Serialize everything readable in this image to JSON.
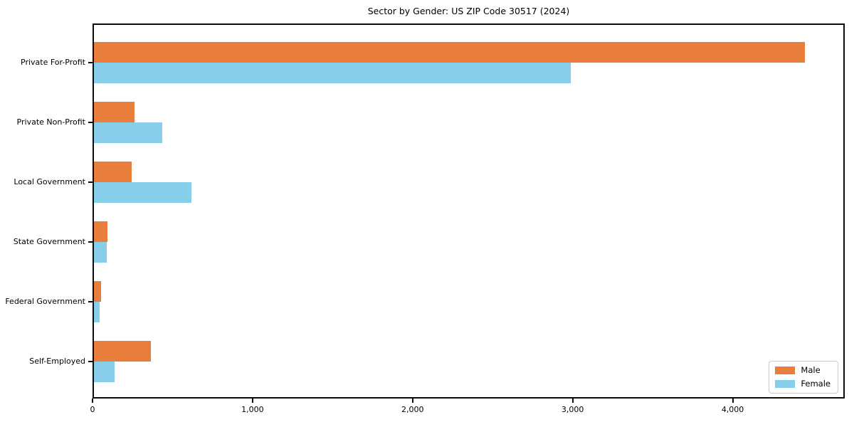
{
  "chart_data": {
    "type": "bar",
    "orientation": "horizontal",
    "title": "Sector by Gender: US ZIP Code 30517 (2024)",
    "categories": [
      "Private For-Profit",
      "Private Non-Profit",
      "Local Government",
      "State Government",
      "Federal Government",
      "Self-Employed"
    ],
    "series": [
      {
        "name": "Male",
        "color": "#e97d3c",
        "values": [
          4460,
          255,
          235,
          85,
          45,
          355
        ]
      },
      {
        "name": "Female",
        "color": "#87ceeb",
        "values": [
          2990,
          430,
          610,
          80,
          35,
          130
        ]
      }
    ],
    "xlabel": "",
    "ylabel": "",
    "xlim": [
      0,
      4700
    ],
    "x_ticks": [
      0,
      1000,
      2000,
      3000,
      4000
    ],
    "x_tick_labels": [
      "0",
      "1,000",
      "2,000",
      "3,000",
      "4,000"
    ],
    "legend_position": "lower right",
    "grid": false,
    "background": "#ffffff",
    "axis_color": "#0d0d0d"
  }
}
